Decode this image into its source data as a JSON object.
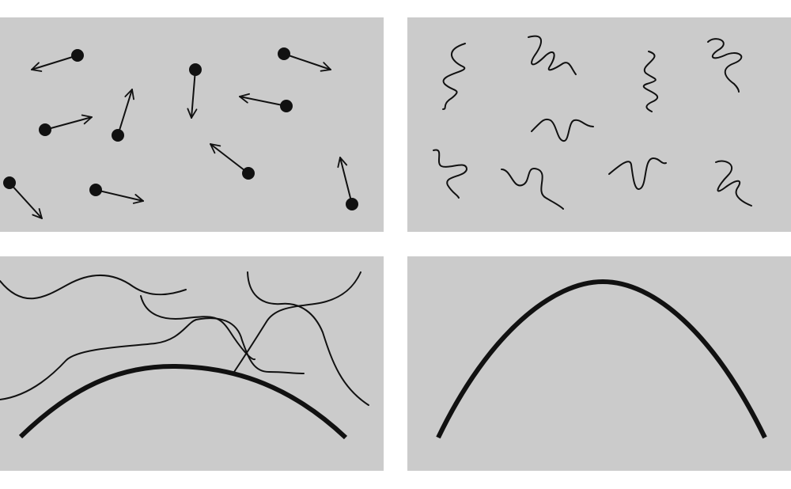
{
  "figure": {
    "panel_count": 4,
    "colors": {
      "background": "#ffffff",
      "panel": "#cbcbcb",
      "ink": "#111111"
    },
    "panels": [
      {
        "position": "top-left",
        "depicts": "particle-with-arrow",
        "count": 10
      },
      {
        "position": "top-right",
        "depicts": "squiggle",
        "count": 9
      },
      {
        "position": "bottom-left",
        "depicts": "wavy-strand",
        "count": 4
      },
      {
        "position": "bottom-right",
        "depicts": "arch-curve",
        "count": 1
      }
    ]
  }
}
